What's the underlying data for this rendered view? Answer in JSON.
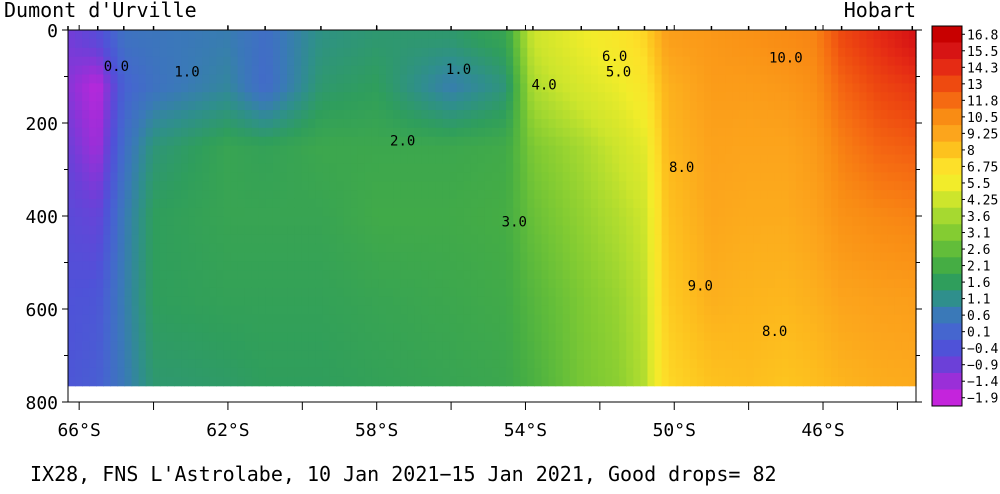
{
  "chart_data": {
    "type": "heatmap",
    "title": "IX28, FNS L'Astrolabe, 10 Jan 2021−15 Jan 2021, Good drops= 82",
    "xlabel": "",
    "ylabel": "",
    "x_range": [
      66.3,
      43.5
    ],
    "ylim": [
      800,
      0
    ],
    "left_label": "Dumont d'Urville",
    "right_label": "Hobart",
    "x_ticks": [
      {
        "value": 66,
        "label": "66°S"
      },
      {
        "value": 62,
        "label": "62°S"
      },
      {
        "value": 58,
        "label": "58°S"
      },
      {
        "value": 54,
        "label": "54°S"
      },
      {
        "value": 50,
        "label": "50°S"
      },
      {
        "value": 46,
        "label": "46°S"
      }
    ],
    "x_minor_ticks": [
      64,
      60,
      56,
      52,
      48,
      44
    ],
    "y_ticks": [
      {
        "value": 0,
        "label": "0"
      },
      {
        "value": 200,
        "label": "200"
      },
      {
        "value": 400,
        "label": "400"
      },
      {
        "value": 600,
        "label": "600"
      },
      {
        "value": 800,
        "label": "800"
      }
    ],
    "y_minor_ticks": [
      100,
      300,
      500,
      700
    ],
    "colorbar_labels": [
      "16.8",
      "15.5",
      "14.3",
      "13",
      "11.8",
      "10.5",
      "9.25",
      "8",
      "6.75",
      "5.5",
      "4.25",
      "3.6",
      "3.1",
      "2.6",
      "2.1",
      "1.6",
      "1.1",
      "0.6",
      "0.1",
      "−0.4",
      "−0.9",
      "−1.4",
      "−1.9"
    ],
    "colorbar_colors": [
      "#c80000",
      "#d71414",
      "#e52b14",
      "#ee4a10",
      "#f56a12",
      "#f98c14",
      "#fca51c",
      "#fdc21e",
      "#fde029",
      "#f2ec2a",
      "#cde52c",
      "#a6d930",
      "#84cc32",
      "#62bd3a",
      "#45ad44",
      "#2f9e5c",
      "#2f8f8c",
      "#3a79b8",
      "#4566cf",
      "#4f52d8",
      "#6c40d8",
      "#9a2fd8",
      "#c424dc"
    ],
    "contour_labels": [
      {
        "text": "0.0",
        "lat": 65.0,
        "depth": 88
      },
      {
        "text": "1.0",
        "lat": 63.1,
        "depth": 100
      },
      {
        "text": "1.0",
        "lat": 55.8,
        "depth": 95
      },
      {
        "text": "2.0",
        "lat": 57.3,
        "depth": 248
      },
      {
        "text": "3.0",
        "lat": 54.3,
        "depth": 423
      },
      {
        "text": "4.0",
        "lat": 53.5,
        "depth": 128
      },
      {
        "text": "5.0",
        "lat": 51.5,
        "depth": 100
      },
      {
        "text": "6.0",
        "lat": 51.6,
        "depth": 67
      },
      {
        "text": "8.0",
        "lat": 49.8,
        "depth": 305
      },
      {
        "text": "9.0",
        "lat": 49.3,
        "depth": 560
      },
      {
        "text": "10.0",
        "lat": 47.0,
        "depth": 70
      },
      {
        "text": "8.0",
        "lat": 47.3,
        "depth": 658
      }
    ],
    "temperature_profiles": [
      {
        "lat": 66.3,
        "t": [
          -1.0,
          -1.2,
          -0.9,
          -0.6,
          -0.4,
          -0.3
        ]
      },
      {
        "lat": 65.5,
        "t": [
          -0.6,
          -1.8,
          -1.5,
          -0.8,
          -0.3,
          -0.1
        ]
      },
      {
        "lat": 64.8,
        "t": [
          0.4,
          0.0,
          0.3,
          0.6,
          0.7,
          0.6
        ]
      },
      {
        "lat": 64.0,
        "t": [
          0.5,
          0.4,
          1.3,
          1.6,
          1.6,
          1.4
        ]
      },
      {
        "lat": 62.0,
        "t": [
          0.7,
          0.9,
          1.8,
          1.8,
          1.7,
          1.5
        ]
      },
      {
        "lat": 61.0,
        "t": [
          0.3,
          0.2,
          1.7,
          1.8,
          1.7,
          1.6
        ]
      },
      {
        "lat": 59.5,
        "t": [
          1.2,
          1.4,
          1.9,
          1.8,
          1.7,
          1.6
        ]
      },
      {
        "lat": 58.0,
        "t": [
          1.4,
          1.6,
          1.9,
          2.0,
          1.8,
          1.7
        ]
      },
      {
        "lat": 56.0,
        "t": [
          1.4,
          0.7,
          1.9,
          2.0,
          1.9,
          1.8
        ]
      },
      {
        "lat": 54.5,
        "t": [
          1.8,
          1.3,
          2.0,
          2.1,
          2.0,
          1.9
        ]
      },
      {
        "lat": 53.8,
        "t": [
          4.2,
          3.7,
          3.0,
          2.7,
          2.4,
          2.2
        ]
      },
      {
        "lat": 52.5,
        "t": [
          5.3,
          4.6,
          3.6,
          3.3,
          3.0,
          2.9
        ]
      },
      {
        "lat": 51.5,
        "t": [
          6.2,
          5.3,
          4.3,
          3.8,
          3.4,
          3.2
        ]
      },
      {
        "lat": 50.8,
        "t": [
          7.2,
          6.3,
          5.0,
          4.3,
          4.0,
          3.8
        ]
      },
      {
        "lat": 50.2,
        "t": [
          9.5,
          8.7,
          8.4,
          8.0,
          7.6,
          7.1
        ]
      },
      {
        "lat": 49.0,
        "t": [
          9.9,
          9.7,
          9.4,
          9.2,
          8.8,
          8.0
        ]
      },
      {
        "lat": 48.0,
        "t": [
          10.2,
          9.7,
          9.3,
          9.0,
          8.6,
          8.2
        ]
      },
      {
        "lat": 47.0,
        "t": [
          10.5,
          9.9,
          9.3,
          9.0,
          8.5,
          7.9
        ]
      },
      {
        "lat": 46.2,
        "t": [
          10.8,
          10.4,
          9.8,
          9.4,
          8.8,
          8.2
        ]
      },
      {
        "lat": 45.5,
        "t": [
          13.0,
          12.0,
          11.0,
          10.2,
          9.3,
          8.6
        ]
      },
      {
        "lat": 44.5,
        "t": [
          14.3,
          13.2,
          12.0,
          10.6,
          9.5,
          8.9
        ]
      },
      {
        "lat": 43.6,
        "t": [
          15.5,
          13.8,
          12.3,
          10.8,
          9.6,
          9.0
        ]
      }
    ],
    "profile_depths": [
      20,
      120,
      250,
      400,
      580,
      760
    ],
    "data_depth_max": 765,
    "grid": false,
    "legend": "colorbar-right"
  }
}
